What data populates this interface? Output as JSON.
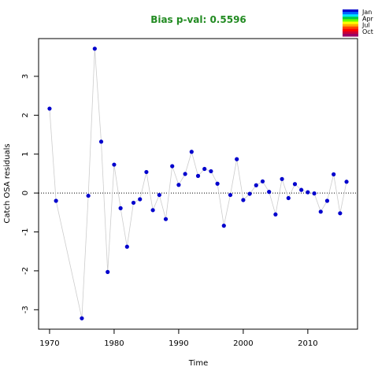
{
  "chart_data": {
    "type": "scatter",
    "title": "Bias p-val: 0.5596",
    "xlabel": "Time",
    "ylabel": "Catch OSA residuals",
    "xlim": [
      1968.3,
      2017.7
    ],
    "ylim": [
      -3.5,
      3.97
    ],
    "x_ticks": [
      1970,
      1980,
      1990,
      2000,
      2010
    ],
    "y_ticks": [
      -3,
      -2,
      -1,
      0,
      1,
      2,
      3
    ],
    "reference_line": 0,
    "point_color": "#0000cd",
    "line_color": "#cccccc",
    "colors": {
      "title": "#228b22",
      "color_bar": [
        "#0000cd",
        "#0066ff",
        "#00e5ff",
        "#00cc44",
        "#66ff00",
        "#ffff00",
        "#ffaa00",
        "#ff4400",
        "#ff0000",
        "#cc0033",
        "#990066"
      ]
    },
    "legend": {
      "position": "top-right",
      "labels": [
        "Jan",
        "Apr",
        "Jul",
        "Oct"
      ]
    },
    "points": [
      {
        "x": 1970,
        "y": 2.17
      },
      {
        "x": 1971,
        "y": -0.2
      },
      {
        "x": 1975,
        "y": -3.22
      },
      {
        "x": 1976,
        "y": -0.07
      },
      {
        "x": 1977,
        "y": 3.71
      },
      {
        "x": 1978,
        "y": 1.32
      },
      {
        "x": 1979,
        "y": -2.03
      },
      {
        "x": 1980,
        "y": 0.73
      },
      {
        "x": 1981,
        "y": -0.39
      },
      {
        "x": 1982,
        "y": -1.38
      },
      {
        "x": 1983,
        "y": -0.25
      },
      {
        "x": 1984,
        "y": -0.16
      },
      {
        "x": 1985,
        "y": 0.54
      },
      {
        "x": 1986,
        "y": -0.44
      },
      {
        "x": 1987,
        "y": -0.05
      },
      {
        "x": 1988,
        "y": -0.67
      },
      {
        "x": 1989,
        "y": 0.69
      },
      {
        "x": 1990,
        "y": 0.21
      },
      {
        "x": 1991,
        "y": 0.49
      },
      {
        "x": 1992,
        "y": 1.06
      },
      {
        "x": 1993,
        "y": 0.44
      },
      {
        "x": 1994,
        "y": 0.62
      },
      {
        "x": 1995,
        "y": 0.56
      },
      {
        "x": 1996,
        "y": 0.24
      },
      {
        "x": 1997,
        "y": -0.84
      },
      {
        "x": 1998,
        "y": -0.05
      },
      {
        "x": 1999,
        "y": 0.87
      },
      {
        "x": 2000,
        "y": -0.18
      },
      {
        "x": 2001,
        "y": -0.02
      },
      {
        "x": 2002,
        "y": 0.2
      },
      {
        "x": 2003,
        "y": 0.3
      },
      {
        "x": 2004,
        "y": 0.03
      },
      {
        "x": 2005,
        "y": -0.55
      },
      {
        "x": 2006,
        "y": 0.36
      },
      {
        "x": 2007,
        "y": -0.13
      },
      {
        "x": 2008,
        "y": 0.23
      },
      {
        "x": 2009,
        "y": 0.08
      },
      {
        "x": 2010,
        "y": 0.02
      },
      {
        "x": 2011,
        "y": -0.01
      },
      {
        "x": 2012,
        "y": -0.48
      },
      {
        "x": 2013,
        "y": -0.2
      },
      {
        "x": 2014,
        "y": 0.48
      },
      {
        "x": 2015,
        "y": -0.52
      },
      {
        "x": 2016,
        "y": 0.29
      }
    ]
  }
}
